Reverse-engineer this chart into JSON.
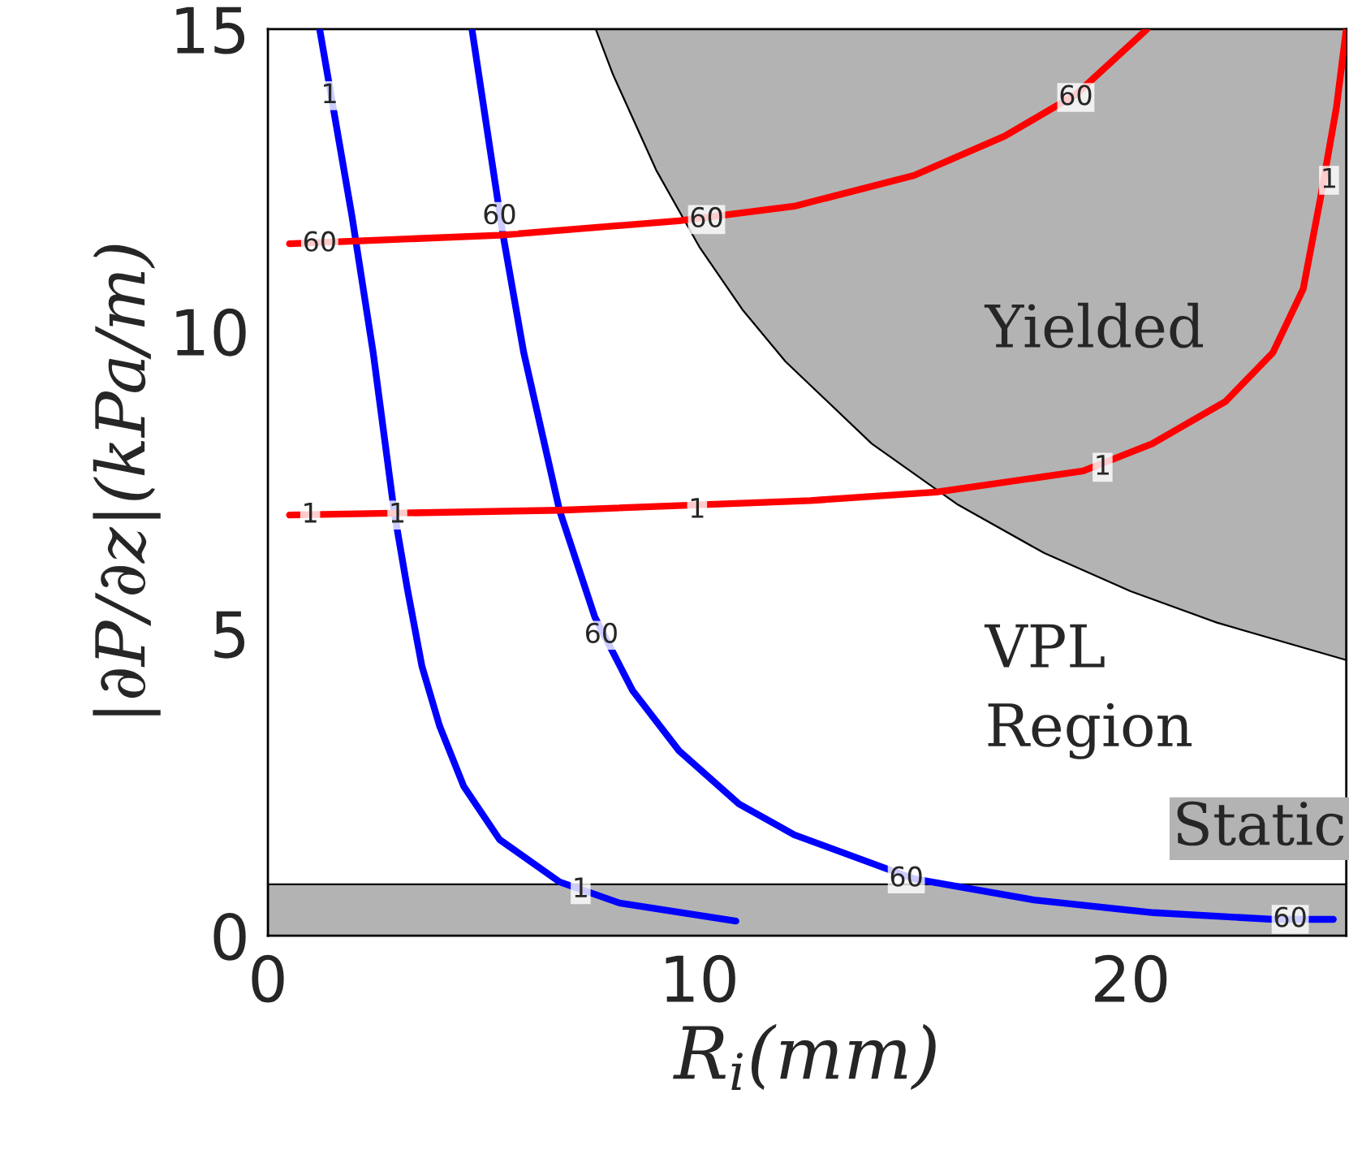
{
  "chart_data": {
    "type": "line",
    "xlabel": "R$_{i}$(mm)",
    "ylabel": "|∂P/∂z|(kPa/m)",
    "xlim": [
      0,
      25
    ],
    "ylim": [
      0,
      15
    ],
    "xticks": [
      0,
      10,
      20
    ],
    "yticks": [
      0,
      5,
      10,
      15
    ],
    "grid": false,
    "legend": false,
    "marker": "none",
    "line_style": "solid",
    "series": [
      {
        "color": "#000000",
        "x": [
          7.6,
          8,
          9,
          10,
          11,
          12,
          14,
          16,
          18,
          20,
          22,
          25
        ],
        "values": [
          15.0,
          14.25,
          12.67,
          11.4,
          10.36,
          9.5,
          8.14,
          7.13,
          6.33,
          5.7,
          5.18,
          4.56
        ],
        "lower": [
          15.0,
          14.25,
          12.67,
          11.4,
          10.36,
          9.5,
          8.14,
          7.13,
          6.33,
          5.7,
          5.18,
          4.56
        ],
        "upper": [
          15,
          15,
          15,
          15,
          15,
          15,
          15,
          15,
          15,
          15,
          15,
          15
        ]
      },
      {
        "color": "#0000ff",
        "x": [
          1.2,
          1.95,
          2.44,
          2.93,
          3.23,
          3.57,
          3.98,
          4.54,
          5.37,
          6.76,
          8.15,
          10.85
        ],
        "values": [
          15.0,
          11.9,
          9.65,
          7.0,
          5.75,
          4.46,
          3.47,
          2.47,
          1.59,
          0.89,
          0.54,
          0.24
        ]
      },
      {
        "color": "#0000ff",
        "x": [
          4.73,
          5.44,
          5.93,
          6.76,
          7.58,
          8.45,
          9.53,
          10.92,
          12.2,
          14.98,
          17.76,
          20.53,
          23.3,
          24.7
        ],
        "values": [
          15.0,
          11.64,
          9.65,
          7.04,
          5.27,
          4.06,
          3.06,
          2.18,
          1.67,
          0.94,
          0.59,
          0.38,
          0.27,
          0.27
        ]
      },
      {
        "color": "#ff0000",
        "x": [
          0.5,
          6.76,
          12.58,
          15.5,
          18.9,
          20.5,
          22.2,
          23.3,
          24.0,
          24.4,
          24.77,
          25
        ],
        "values": [
          6.96,
          7.04,
          7.2,
          7.34,
          7.69,
          8.14,
          8.84,
          9.65,
          10.7,
          12.2,
          13.7,
          15.0
        ]
      },
      {
        "color": "#ff0000",
        "x": [
          0.5,
          5.37,
          9.53,
          12.2,
          14.98,
          17.08,
          18.73,
          20.38
        ],
        "values": [
          11.45,
          11.59,
          11.83,
          12.07,
          12.58,
          13.23,
          13.92,
          15.0
        ]
      }
    ],
    "bands": [
      {
        "axis": "y",
        "from": 0,
        "to": 0.85,
        "label": "Static",
        "color": "#b3b3b3"
      }
    ],
    "annotations": [
      {
        "text": "1",
        "x": 1.43,
        "y": 13.9
      },
      {
        "text": "1",
        "x": 3.0,
        "y": 6.96
      },
      {
        "text": "1",
        "x": 7.25,
        "y": 0.76
      },
      {
        "text": "60",
        "x": 5.37,
        "y": 11.9
      },
      {
        "text": "60",
        "x": 7.73,
        "y": 4.97
      },
      {
        "text": "60",
        "x": 14.8,
        "y": 0.94
      },
      {
        "text": "60",
        "x": 23.7,
        "y": 0.27
      },
      {
        "text": "1",
        "x": 0.98,
        "y": 6.96
      },
      {
        "text": "1",
        "x": 9.95,
        "y": 7.04
      },
      {
        "text": "1",
        "x": 19.35,
        "y": 7.75
      },
      {
        "text": "1",
        "x": 24.6,
        "y": 12.5
      },
      {
        "text": "60",
        "x": 1.2,
        "y": 11.45
      },
      {
        "text": "60",
        "x": 10.17,
        "y": 11.85
      },
      {
        "text": "60",
        "x": 18.73,
        "y": 13.87
      },
      "Yielded",
      "VPL\nRegion"
    ]
  }
}
